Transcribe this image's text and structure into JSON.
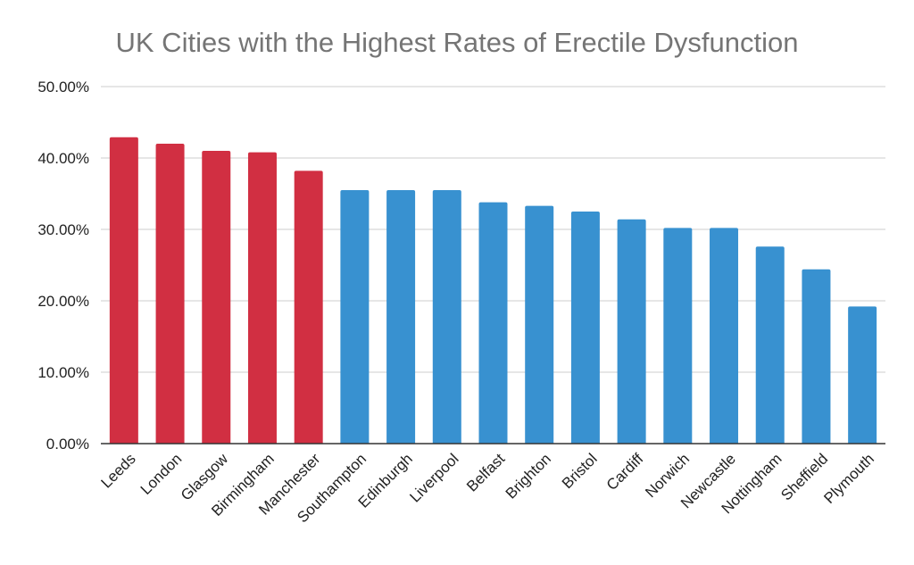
{
  "chart_data": {
    "type": "bar",
    "title": "UK Cities with the Highest Rates of Erectile Dysfunction",
    "xlabel": "",
    "ylabel": "",
    "ylim": [
      0,
      50
    ],
    "y_ticks": [
      0,
      10,
      20,
      30,
      40,
      50
    ],
    "y_tick_labels": [
      "0.00%",
      "10.00%",
      "20.00%",
      "30.00%",
      "40.00%",
      "50.00%"
    ],
    "grid": true,
    "legend": "none",
    "categories": [
      "Leeds",
      "London",
      "Glasgow",
      "Birmingham",
      "Manchester",
      "Southampton",
      "Edinburgh",
      "Liverpool",
      "Belfast",
      "Brighton",
      "Bristol",
      "Cardiff",
      "Norwich",
      "Newcastle",
      "Nottingham",
      "Sheffield",
      "Plymouth"
    ],
    "values": [
      42.9,
      42.0,
      41.0,
      40.8,
      38.2,
      35.5,
      35.5,
      35.5,
      33.8,
      33.3,
      32.5,
      31.4,
      30.2,
      30.2,
      27.6,
      24.4,
      19.2
    ],
    "bar_colors": [
      "#d12f42",
      "#d12f42",
      "#d12f42",
      "#d12f42",
      "#d12f42",
      "#3891d0",
      "#3891d0",
      "#3891d0",
      "#3891d0",
      "#3891d0",
      "#3891d0",
      "#3891d0",
      "#3891d0",
      "#3891d0",
      "#3891d0",
      "#3891d0",
      "#3891d0"
    ]
  }
}
